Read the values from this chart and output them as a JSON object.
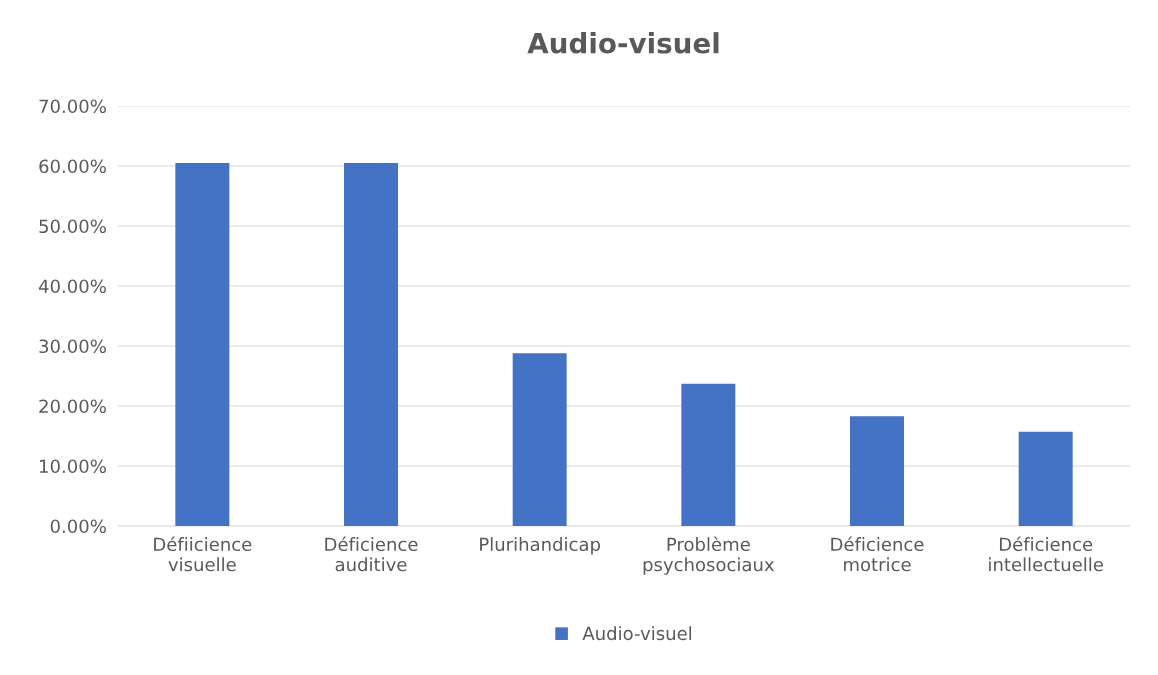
{
  "chart_data": {
    "type": "bar",
    "title": "Audio-visuel",
    "categories": [
      "Défiicience\nvisuelle",
      "Déficience\nauditive",
      "Plurihandicap",
      "Problème\npsychosociaux",
      "Déficience\nmotrice",
      "Déficience\nintellectuelle"
    ],
    "series": [
      {
        "name": "Audio-visuel",
        "color": "#4472c4",
        "values": [
          60.5,
          60.5,
          28.8,
          23.7,
          18.3,
          15.7
        ]
      }
    ],
    "ylim": [
      0,
      70
    ],
    "yticks": [
      {
        "value": 0,
        "label": "0.00%"
      },
      {
        "value": 10,
        "label": "10.00%"
      },
      {
        "value": 20,
        "label": "20.00%"
      },
      {
        "value": 30,
        "label": "30.00%"
      },
      {
        "value": 40,
        "label": "40.00%"
      },
      {
        "value": 50,
        "label": "50.00%"
      },
      {
        "value": 60,
        "label": "60.00%"
      },
      {
        "value": 70,
        "label": "70.00%"
      }
    ],
    "grid": "y",
    "legend": "bottom"
  }
}
